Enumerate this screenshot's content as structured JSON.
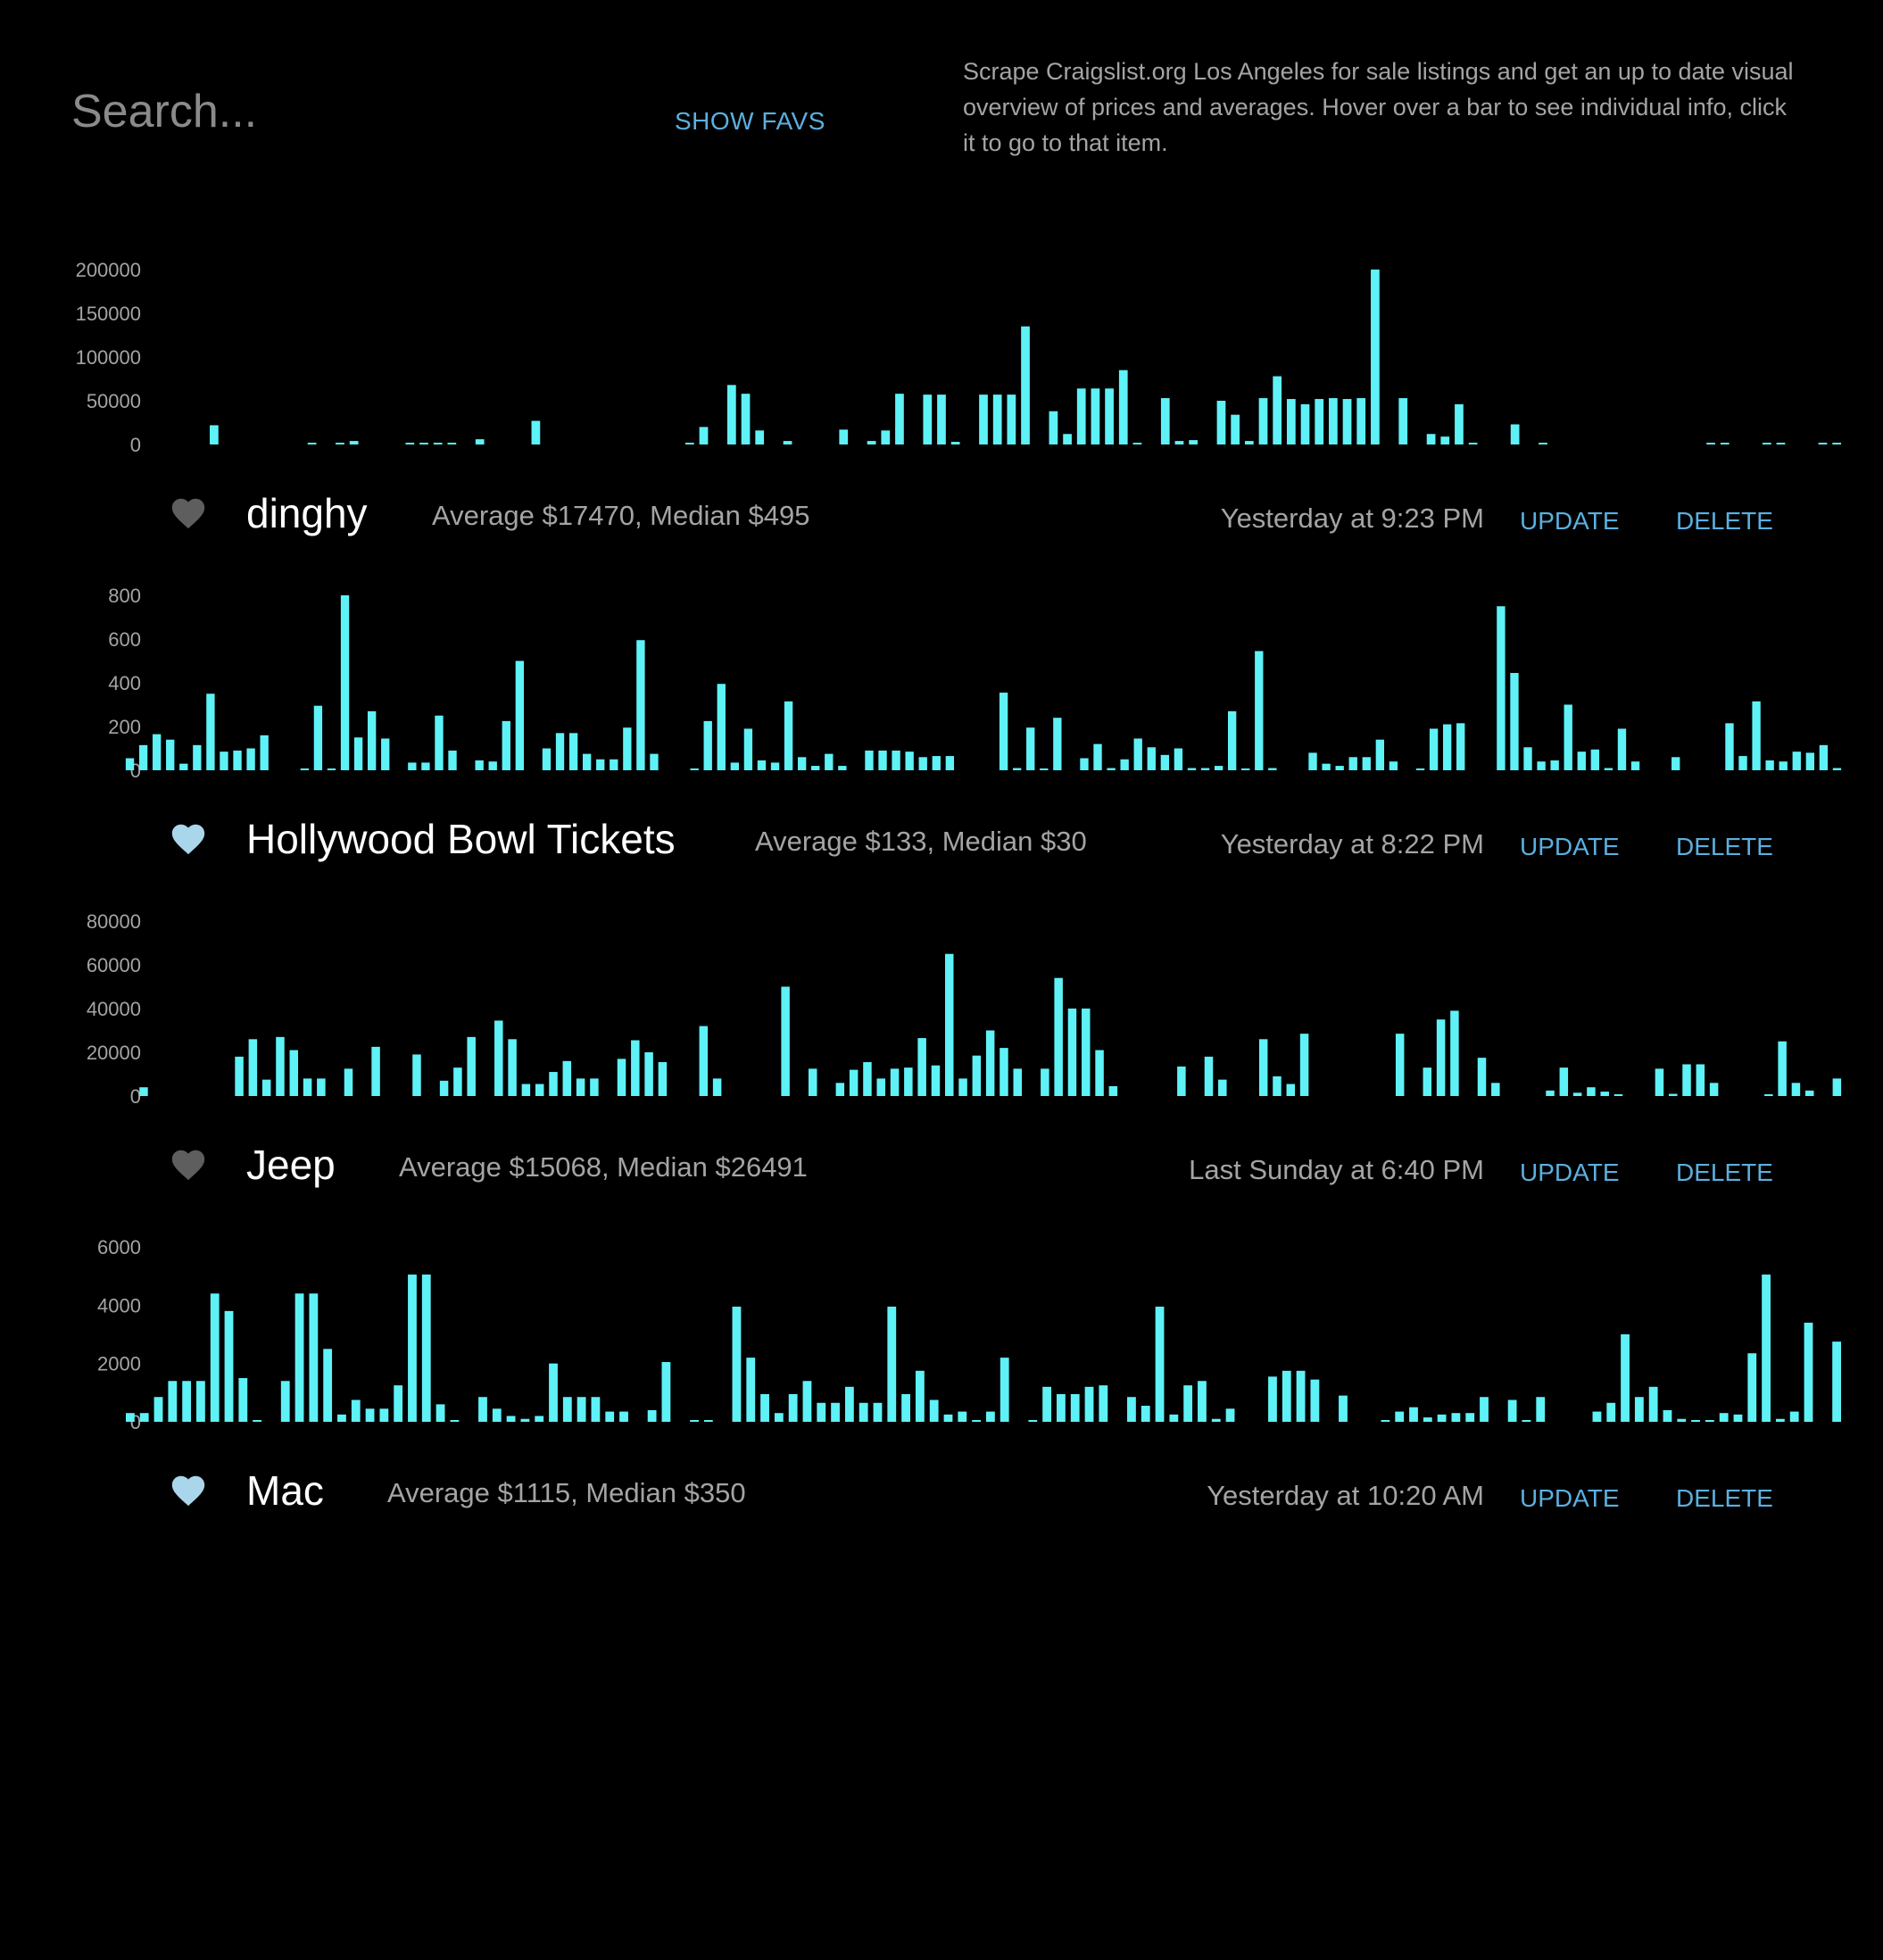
{
  "search": {
    "placeholder": "Search..."
  },
  "header": {
    "show_favs_label": "SHOW FAVS",
    "description": "Scrape Craigslist.org Los Angeles for sale listings and get an up to date visual overview of prices and averages. Hover over a bar to see individual info, click it to go to that item."
  },
  "colors": {
    "background": "#000000",
    "bar": "#5ef2f7",
    "link": "#5ab0e0",
    "muted_text": "#a4a4a4",
    "heart_fav": "#a9d6ea",
    "heart_off": "#5e5e5e"
  },
  "items": [
    {
      "name": "dinghy",
      "stats": "Average $17470, Median $495",
      "time": "Yesterday at 9:23 PM",
      "update_label": "UPDATE",
      "delete_label": "DELETE",
      "favorite": false,
      "heart_icon": "heart-icon"
    },
    {
      "name": "Hollywood Bowl Tickets",
      "stats": "Average $133, Median $30",
      "time": "Yesterday at 8:22 PM",
      "update_label": "UPDATE",
      "delete_label": "DELETE",
      "favorite": true,
      "heart_icon": "heart-icon"
    },
    {
      "name": "Jeep",
      "stats": "Average $15068, Median $26491",
      "time": "Last Sunday at 6:40 PM",
      "update_label": "UPDATE",
      "delete_label": "DELETE",
      "favorite": false,
      "heart_icon": "heart-icon"
    },
    {
      "name": "Mac",
      "stats": "Average $1115, Median $350",
      "time": "Yesterday at 10:20 AM",
      "update_label": "UPDATE",
      "delete_label": "DELETE",
      "favorite": true,
      "heart_icon": "heart-icon"
    }
  ],
  "chart_data": [
    {
      "type": "bar",
      "ylim": [
        0,
        200000
      ],
      "yticks": [
        "0",
        "50000",
        "100000",
        "150000",
        "200000"
      ],
      "grid": false,
      "values": [
        0,
        0,
        0,
        0,
        0,
        0,
        22000,
        0,
        0,
        0,
        0,
        0,
        0,
        800,
        0,
        1500,
        4000,
        0,
        0,
        0,
        1000,
        1000,
        1000,
        1000,
        0,
        6000,
        0,
        0,
        0,
        27000,
        0,
        0,
        0,
        0,
        0,
        0,
        0,
        0,
        0,
        0,
        1500,
        20000,
        0,
        68000,
        58000,
        16000,
        0,
        4000,
        0,
        0,
        0,
        17000,
        0,
        4000,
        16000,
        58000,
        0,
        57000,
        57000,
        3000,
        0,
        57000,
        57000,
        57000,
        135000,
        0,
        38000,
        12000,
        64000,
        64000,
        64000,
        85000,
        2000,
        0,
        53000,
        4000,
        5000,
        0,
        50000,
        34000,
        4000,
        53000,
        78000,
        52000,
        46000,
        52000,
        53000,
        52000,
        53000,
        200000,
        0,
        53000,
        0,
        12000,
        9000,
        46000,
        2000,
        0,
        0,
        23000,
        0,
        2000,
        0,
        0,
        0,
        0,
        0,
        0,
        0,
        0,
        0,
        0,
        0,
        1000,
        1000,
        0,
        0,
        1000,
        1500,
        0,
        0,
        1000,
        1000
      ]
    },
    {
      "type": "bar",
      "ylim": [
        0,
        800
      ],
      "yticks": [
        "0",
        "200",
        "400",
        "600",
        "800"
      ],
      "grid": false,
      "values": [
        55,
        115,
        165,
        140,
        30,
        115,
        350,
        85,
        90,
        100,
        160,
        0,
        0,
        5,
        295,
        5,
        800,
        150,
        270,
        145,
        0,
        35,
        35,
        250,
        90,
        0,
        45,
        40,
        225,
        500,
        0,
        100,
        170,
        170,
        75,
        50,
        50,
        195,
        595,
        75,
        0,
        0,
        5,
        225,
        395,
        35,
        190,
        45,
        35,
        315,
        60,
        20,
        75,
        20,
        0,
        90,
        90,
        90,
        85,
        60,
        65,
        65,
        0,
        0,
        0,
        355,
        10,
        195,
        5,
        240,
        0,
        55,
        120,
        10,
        50,
        145,
        105,
        70,
        100,
        10,
        10,
        20,
        270,
        5,
        545,
        10,
        0,
        0,
        80,
        30,
        20,
        60,
        60,
        140,
        40,
        0,
        5,
        190,
        210,
        215,
        0,
        0,
        750,
        445,
        105,
        40,
        45,
        300,
        85,
        95,
        10,
        190,
        40,
        0,
        0,
        60,
        0,
        0,
        0,
        215,
        65,
        315,
        45,
        40,
        85,
        80,
        115,
        10
      ]
    },
    {
      "type": "bar",
      "ylim": [
        0,
        80000
      ],
      "yticks": [
        "0",
        "20000",
        "40000",
        "60000",
        "80000"
      ],
      "grid": false,
      "values": [
        0,
        4000,
        0,
        0,
        0,
        0,
        0,
        0,
        18000,
        26000,
        7500,
        27000,
        21000,
        8000,
        8000,
        0,
        12500,
        0,
        22500,
        0,
        0,
        19000,
        0,
        7000,
        13000,
        27000,
        0,
        34500,
        26000,
        5500,
        5500,
        11000,
        16000,
        8000,
        8000,
        0,
        17000,
        25500,
        20000,
        15500,
        0,
        0,
        32000,
        8000,
        0,
        0,
        0,
        0,
        50000,
        0,
        12500,
        0,
        6000,
        12000,
        15500,
        8000,
        12500,
        13000,
        26500,
        14000,
        65000,
        8000,
        18500,
        30000,
        22000,
        12500,
        0,
        12500,
        54000,
        40000,
        40000,
        21000,
        4500,
        0,
        0,
        0,
        0,
        13500,
        0,
        18000,
        7500,
        0,
        0,
        26000,
        9000,
        5500,
        28500,
        0,
        0,
        0,
        0,
        0,
        0,
        28500,
        0,
        13000,
        35000,
        39000,
        0,
        17500,
        6000,
        0,
        0,
        0,
        2500,
        13000,
        1500,
        4000,
        2000,
        500,
        0,
        0,
        12500,
        1000,
        14500,
        14500,
        6000,
        0,
        0,
        0,
        800,
        25000,
        6000,
        2500,
        0,
        8000
      ]
    },
    {
      "type": "bar",
      "ylim": [
        0,
        6000
      ],
      "yticks": [
        "0",
        "2000",
        "4000",
        "6000"
      ],
      "grid": false,
      "values": [
        300,
        300,
        850,
        1400,
        1400,
        1400,
        4400,
        3800,
        1500,
        40,
        0,
        1400,
        4400,
        4400,
        2500,
        250,
        750,
        450,
        450,
        1250,
        5050,
        5050,
        600,
        40,
        0,
        850,
        450,
        200,
        100,
        200,
        2000,
        850,
        850,
        850,
        350,
        350,
        0,
        400,
        2050,
        0,
        40,
        40,
        0,
        3950,
        2200,
        950,
        300,
        950,
        1400,
        650,
        650,
        1200,
        650,
        650,
        3950,
        950,
        1750,
        750,
        250,
        350,
        40,
        350,
        2200,
        0,
        40,
        1200,
        950,
        950,
        1200,
        1250,
        0,
        850,
        550,
        3950,
        250,
        1250,
        1400,
        100,
        450,
        0,
        0,
        1550,
        1750,
        1750,
        1450,
        0,
        900,
        0,
        0,
        40,
        350,
        500,
        150,
        250,
        300,
        300,
        850,
        0,
        750,
        50,
        850,
        0,
        0,
        0,
        350,
        650,
        3000,
        850,
        1200,
        400,
        100,
        40,
        40,
        300,
        250,
        2350,
        5050,
        100,
        350,
        3400,
        0,
        2750
      ]
    }
  ]
}
